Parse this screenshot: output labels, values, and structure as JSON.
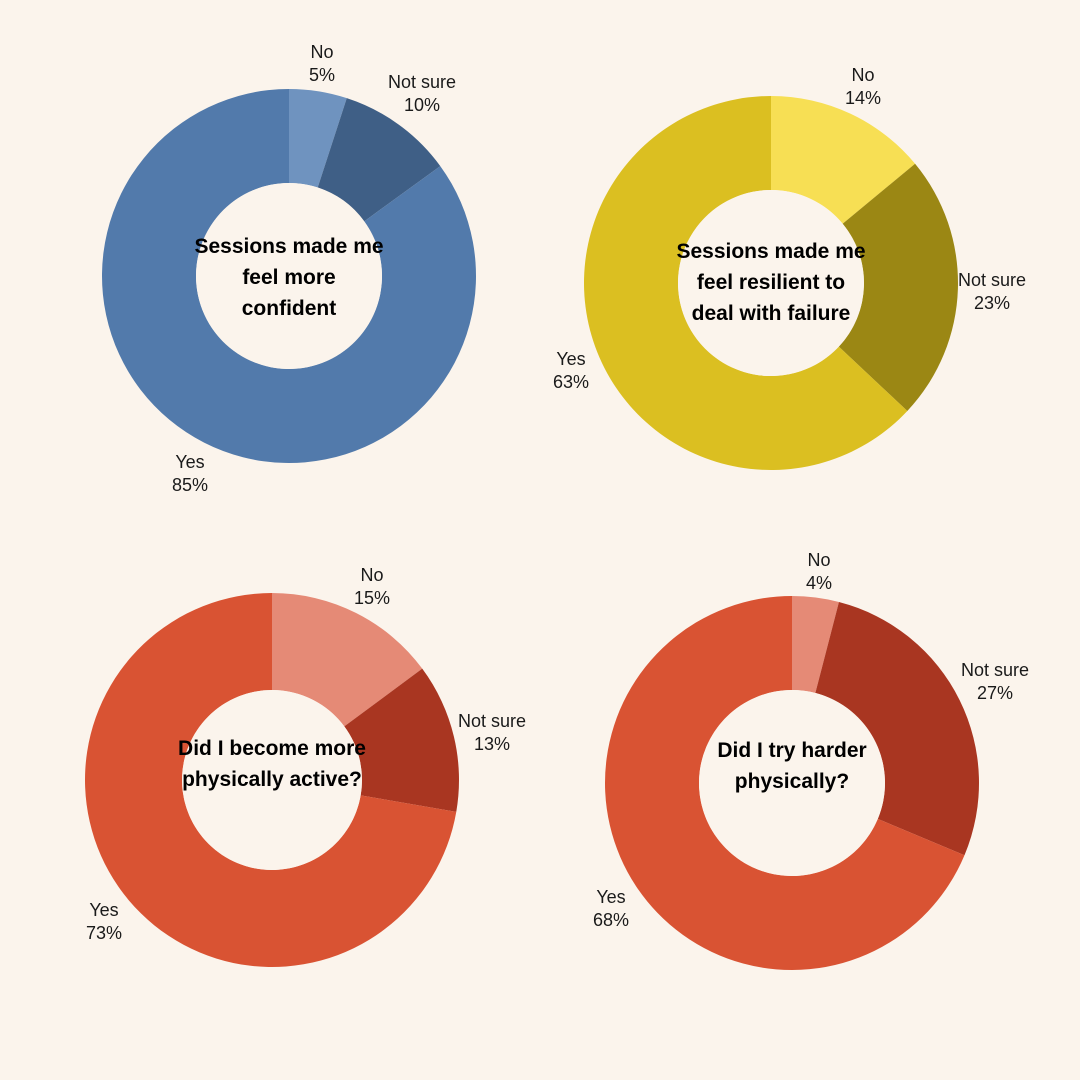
{
  "page": {
    "background": "#fbf4ec"
  },
  "chart_data": [
    {
      "type": "pie",
      "title": "Sessions made me feel more confident",
      "categories": [
        "No",
        "Not sure",
        "Yes"
      ],
      "values": [
        5,
        10,
        85
      ],
      "value_labels": [
        "5%",
        "10%",
        "85%"
      ],
      "colors": [
        "#6f93bf",
        "#3f5f86",
        "#527aab"
      ]
    },
    {
      "type": "pie",
      "title": "Sessions made me feel resilient to deal with failure",
      "categories": [
        "No",
        "Not sure",
        "Yes"
      ],
      "values": [
        14,
        23,
        63
      ],
      "value_labels": [
        "14%",
        "23%",
        "63%"
      ],
      "colors": [
        "#f7df54",
        "#9b8714",
        "#dbbf21"
      ]
    },
    {
      "type": "pie",
      "title": "Did I become more physically active?",
      "categories": [
        "No",
        "Not sure",
        "Yes"
      ],
      "values": [
        15,
        13,
        73
      ],
      "value_labels": [
        "15%",
        "13%",
        "73%"
      ],
      "colors": [
        "#e58a76",
        "#a93621",
        "#d95333"
      ]
    },
    {
      "type": "pie",
      "title": "Did I try harder physically?",
      "categories": [
        "No",
        "Not sure",
        "Yes"
      ],
      "values": [
        4,
        27,
        68
      ],
      "value_labels": [
        "4%",
        "27%",
        "68%"
      ],
      "colors": [
        "#e58a76",
        "#a93621",
        "#d95333"
      ]
    }
  ]
}
